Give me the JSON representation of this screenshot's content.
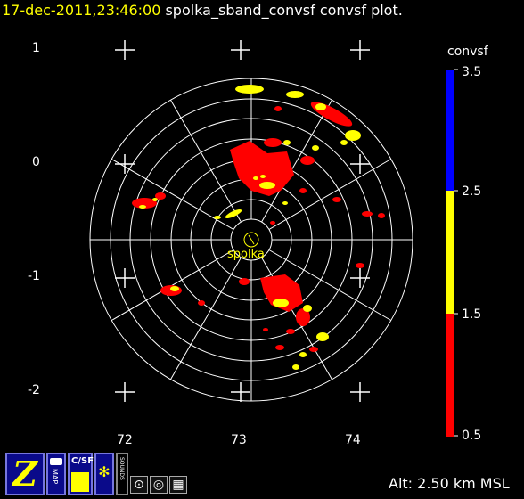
{
  "header": {
    "timestamp": "17-dec-2011,23:46:00",
    "plot_name": "spolka_sband_convsf convsf  plot."
  },
  "radar": {
    "site_label": "spolka"
  },
  "axes": {
    "y_ticks": [
      {
        "label": "1",
        "value": 1
      },
      {
        "label": "0",
        "value": 0
      },
      {
        "label": "-1",
        "value": -1
      },
      {
        "label": "-2",
        "value": -2
      }
    ],
    "x_ticks": [
      {
        "label": "72",
        "value": 72
      },
      {
        "label": "73",
        "value": 73
      },
      {
        "label": "74",
        "value": 74
      }
    ]
  },
  "colorbar": {
    "field": "convsf",
    "ticks": [
      "3.5",
      "2.5",
      "1.5",
      "0.5"
    ],
    "bands": [
      {
        "from": 2.5,
        "to": 3.5,
        "color": "#0000ff"
      },
      {
        "from": 1.5,
        "to": 2.5,
        "color": "#ffff00"
      },
      {
        "from": 0.5,
        "to": 1.5,
        "color": "#ff0000"
      }
    ]
  },
  "footer": {
    "altitude": "Alt: 2.50 km MSL"
  },
  "toolbar": {
    "buttons": [
      {
        "name": "zebra-logo-button",
        "glyph": "Z"
      },
      {
        "name": "map-button",
        "glyph": "MAP"
      },
      {
        "name": "csf-button",
        "glyph": "C/SF"
      },
      {
        "name": "radar-sweep-button",
        "glyph": "✻"
      },
      {
        "name": "sounds-button",
        "glyph": "SOUNDS"
      },
      {
        "name": "point-button",
        "glyph": "⊙"
      },
      {
        "name": "ring-button",
        "glyph": "◎"
      },
      {
        "name": "grid-button",
        "glyph": "▦"
      }
    ]
  },
  "colors": {
    "title": "#ffff00",
    "rings": "#ffffff",
    "echo_low": "#ff0000",
    "echo_mid": "#ffff00",
    "toolbar_bg": "#0a0a8a"
  }
}
